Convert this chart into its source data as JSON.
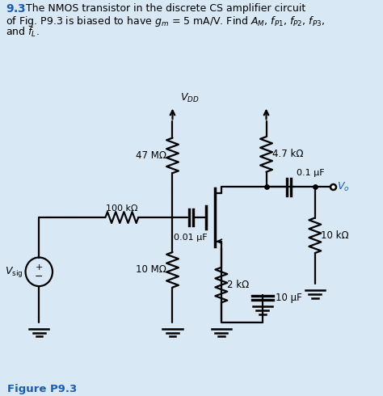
{
  "bg_color": "#d8e8f4",
  "text_color": "#000000",
  "blue_color": "#1a5cb5",
  "lw": 1.6,
  "components": {
    "R47M": "47 MΩ",
    "R4p7k": "4.7 kΩ",
    "R100k": "100 kΩ",
    "C001": "0.01 μF",
    "C01": "0.1 μF",
    "R10M": "10 MΩ",
    "R2k": "2 kΩ",
    "R10k": "10 kΩ",
    "C10u": "10 μF",
    "VDD": "$V_{DD}$",
    "Vo": "$V_o$",
    "Vsig": "$V_{\\mathrm{sig}}$"
  }
}
